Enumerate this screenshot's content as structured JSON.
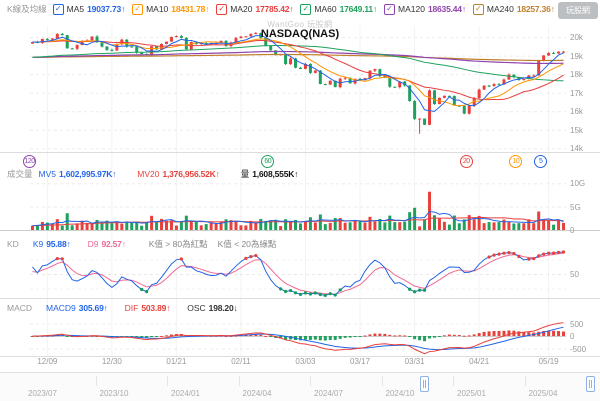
{
  "header": {
    "section_label": "K線及均線",
    "check_glyph": "✓",
    "ma_items": [
      {
        "name": "MA5",
        "value": "19037.73",
        "arrow": "↑",
        "color": "#2264e5"
      },
      {
        "name": "MA10",
        "value": "18431.78",
        "arrow": "↑",
        "color": "#ff9500"
      },
      {
        "name": "MA20",
        "value": "17785.42",
        "arrow": "↑",
        "color": "#e8413c"
      },
      {
        "name": "MA60",
        "value": "17649.11",
        "arrow": "↑",
        "color": "#1fa15d"
      },
      {
        "name": "MA120",
        "value": "18635.44",
        "arrow": "↑",
        "color": "#8f44ad"
      },
      {
        "name": "MA240",
        "value": "18257.36",
        "arrow": "↑",
        "color": "#c07f2d"
      }
    ],
    "logo_text": "玩股網"
  },
  "chart": {
    "watermark": "WantGoo 玩股網",
    "title": "NASDAQ(NAS)"
  },
  "volume_section": {
    "label": "成交量",
    "mv5_name": "MV5",
    "mv5_value": "1,602,995.97K",
    "mv5_arrow": "↑",
    "mv5_color": "#2264e5",
    "mv20_name": "MV20",
    "mv20_value": "1,376,956.52K",
    "mv20_arrow": "↑",
    "mv20_color": "#e8413c",
    "qty_name": "量",
    "qty_value": "1,608,555K",
    "qty_arrow": "↑"
  },
  "kd_section": {
    "label": "KD",
    "k_name": "K9",
    "k_value": "95.88",
    "k_arrow": "↑",
    "k_color": "#2264e5",
    "d_name": "D9",
    "d_value": "92.57",
    "d_arrow": "↑",
    "d_color": "#f06a93",
    "note_high": "K值 > 80為紅點",
    "note_low": "K值 < 20為綠點"
  },
  "macd_section": {
    "label": "MACD",
    "macd9_name": "MACD9",
    "macd9_value": "305.69",
    "macd9_arrow": "↑",
    "macd9_color": "#2264e5",
    "dif_name": "DIF",
    "dif_value": "503.89",
    "dif_arrow": "↑",
    "dif_color": "#e8413c",
    "osc_name": "OSC",
    "osc_value": "198.20",
    "osc_arrow": "↓",
    "osc_color": "#333333"
  },
  "x_ticks": {
    "indices": [
      3,
      16,
      29,
      42,
      55,
      66,
      77,
      90,
      104
    ],
    "labels": [
      "12/09",
      "12/30",
      "01/21",
      "02/11",
      "03/03",
      "03/17",
      "03/31",
      "04/21",
      "05/19"
    ]
  },
  "badges": [
    {
      "label": "120",
      "period": 120,
      "color": "#8f44ad"
    },
    {
      "label": "60",
      "period": 60,
      "color": "#1fa15d"
    },
    {
      "label": "20",
      "period": 20,
      "color": "#e8413c"
    },
    {
      "label": "10",
      "period": 10,
      "color": "#ff9500"
    },
    {
      "label": "5",
      "period": 5,
      "color": "#2264e5"
    }
  ],
  "slider": {
    "labels": [
      "2023/07",
      "2023/10",
      "2024/01",
      "2024/04",
      "2024/07",
      "2024/10",
      "2025/01",
      "2025/04"
    ],
    "handle_positions": [
      0.707,
      0.983
    ]
  },
  "chart_data": {
    "type": "candlestick",
    "symbol": "NASDAQ(NAS)",
    "first_open": 19650,
    "closes": [
      19736,
      19687,
      19902,
      19863,
      19926,
      20174,
      20109,
      19393,
      19372,
      19572,
      19764,
      19826,
      20031,
      19722,
      19486,
      19311,
      19281,
      19622,
      19864,
      19489,
      19479,
      19162,
      19088,
      19044,
      19511,
      19338,
      19630,
      19756,
      20009,
      20053,
      19954,
      19341,
      19734,
      19632,
      19681,
      19627,
      19628,
      19692,
      19792,
      19523,
      19714,
      19945,
      20027,
      20041,
      20164,
      20218,
      19962,
      19524,
      19286,
      19026,
      19075,
      18544,
      18847,
      18350,
      18285,
      18552,
      18069,
      18196,
      17468,
      17436,
      17648,
      17303,
      17754,
      17808,
      17504,
      17750,
      17691,
      17784,
      18189,
      18272,
      17899,
      17804,
      17323,
      17299,
      17601,
      17390,
      16551,
      15588,
      15603,
      15268,
      17125,
      16387,
      16724,
      16831,
      16823,
      16307,
      16286,
      15871,
      16300,
      16708,
      17166,
      17383,
      17366,
      17461,
      17446,
      17710,
      17978,
      17844,
      17689,
      17738,
      17928,
      17929,
      18708,
      19010,
      19146,
      19112,
      19211,
      19215
    ],
    "special_low": {
      "index": 78,
      "low": 14784
    },
    "price_range": [
      13800,
      20600
    ],
    "price_grid": [
      {
        "v": 20000,
        "label": "20k"
      },
      {
        "v": 19000,
        "label": "19k"
      },
      {
        "v": 18000,
        "label": "18k"
      },
      {
        "v": 17000,
        "label": "17k"
      },
      {
        "v": 16000,
        "label": "16k"
      },
      {
        "v": 15000,
        "label": "15k"
      },
      {
        "v": 14000,
        "label": "14k"
      }
    ],
    "volume_grid": [
      {
        "v": 10,
        "label": "10G"
      },
      {
        "v": 5,
        "label": "5G"
      },
      {
        "v": 0,
        "label": "0"
      }
    ],
    "kd_grid": [
      {
        "v": 50,
        "label": "50"
      }
    ],
    "macd_grid": [
      {
        "v": 500,
        "label": "500"
      },
      {
        "v": 0,
        "label": "0"
      },
      {
        "v": -500,
        "label": "-500"
      }
    ],
    "ma_periods": [
      5,
      10,
      20,
      60,
      120,
      240
    ],
    "history_pad": 18900,
    "colors": {
      "up": "#e8413c",
      "down": "#1fa15d",
      "mv5": "#2264e5",
      "mv20": "#e8413c",
      "k": "#2264e5",
      "d": "#f06a93",
      "dif": "#e8413c",
      "macd9": "#2264e5",
      "dot_high": "#e8413c",
      "dot_low": "#0f9d58"
    }
  }
}
